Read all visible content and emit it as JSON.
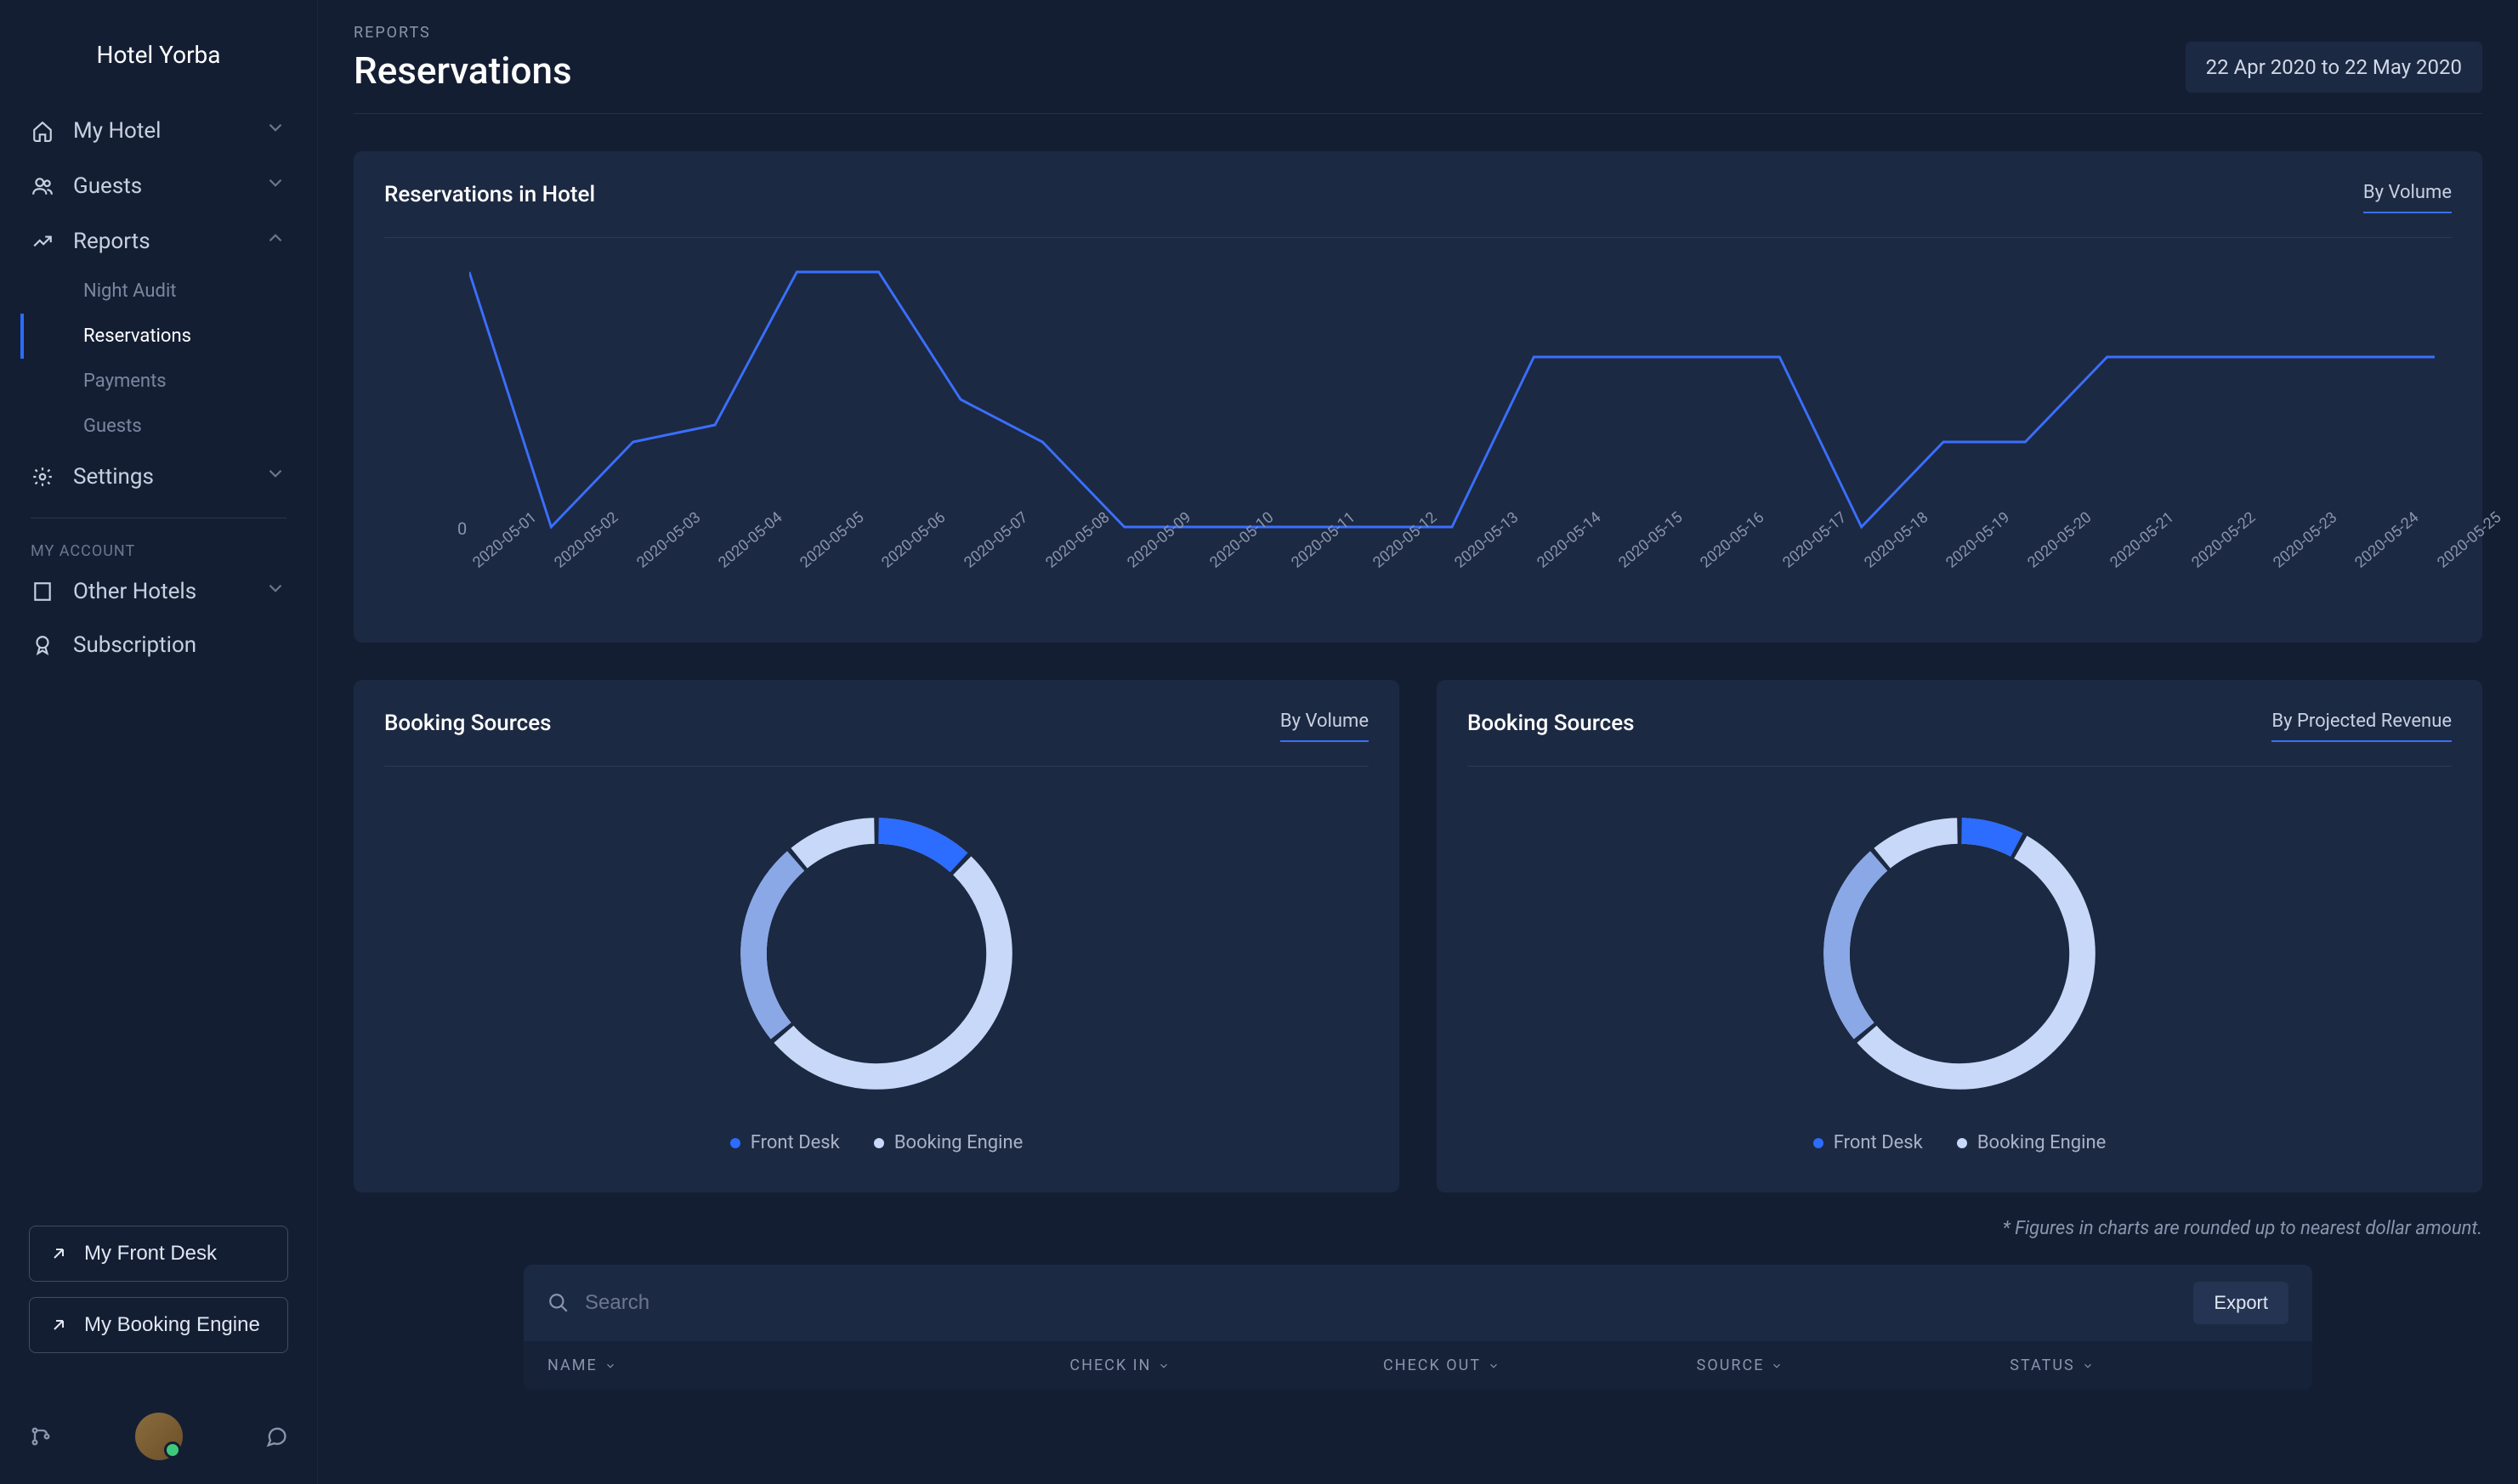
{
  "sidebar": {
    "title": "Hotel Yorba",
    "items": [
      {
        "label": "My Hotel"
      },
      {
        "label": "Guests"
      },
      {
        "label": "Reports"
      },
      {
        "label": "Settings"
      }
    ],
    "reports_sub": [
      {
        "label": "Night Audit"
      },
      {
        "label": "Reservations"
      },
      {
        "label": "Payments"
      },
      {
        "label": "Guests"
      }
    ],
    "account_label": "MY ACCOUNT",
    "account_items": [
      {
        "label": "Other Hotels"
      },
      {
        "label": "Subscription"
      }
    ],
    "buttons": {
      "front_desk": "My Front Desk",
      "booking_engine": "My Booking Engine"
    }
  },
  "header": {
    "breadcrumb": "REPORTS",
    "title": "Reservations",
    "date_range": "22 Apr 2020 to 22 May 2020"
  },
  "chart1": {
    "title": "Reservations in Hotel",
    "filter": "By Volume",
    "type": "line",
    "y_zero_label": "0",
    "line_color": "#3a6fff",
    "line_width": 3,
    "background": "#1c2942",
    "x_labels": [
      "2020-05-01",
      "2020-05-02",
      "2020-05-03",
      "2020-05-04",
      "2020-05-05",
      "2020-05-06",
      "2020-05-07",
      "2020-05-08",
      "2020-05-09",
      "2020-05-10",
      "2020-05-11",
      "2020-05-12",
      "2020-05-13",
      "2020-05-14",
      "2020-05-15",
      "2020-05-16",
      "2020-05-17",
      "2020-05-18",
      "2020-05-19",
      "2020-05-20",
      "2020-05-21",
      "2020-05-22",
      "2020-05-23",
      "2020-05-24",
      "2020-05-25"
    ],
    "values": [
      3,
      0,
      1,
      1.2,
      3,
      3,
      1.5,
      1,
      0,
      0,
      0,
      0,
      0,
      2,
      2,
      2,
      2,
      0,
      1,
      1,
      2,
      2,
      2,
      2,
      2
    ]
  },
  "chart2": {
    "title": "Booking Sources",
    "filter": "By Volume",
    "type": "donut",
    "segments": [
      {
        "label": "Front Desk",
        "value": 12,
        "color": "#2c6cff"
      },
      {
        "label": "Booking Engine",
        "value": 88,
        "color": "#c8d8f8"
      }
    ],
    "segment_dark": "#8aa8e6",
    "gap_color": "#1c2942",
    "thickness": 34
  },
  "chart3": {
    "title": "Booking Sources",
    "filter": "By Projected Revenue",
    "type": "donut",
    "segments": [
      {
        "label": "Front Desk",
        "value": 8,
        "color": "#2c6cff"
      },
      {
        "label": "Booking Engine",
        "value": 92,
        "color": "#c8d8f8"
      }
    ],
    "segment_dark": "#8aa8e6",
    "gap_color": "#1c2942",
    "thickness": 34
  },
  "footnote": "* Figures in charts are rounded up to nearest dollar amount.",
  "table": {
    "search_placeholder": "Search",
    "export_label": "Export",
    "columns": [
      "NAME",
      "CHECK IN",
      "CHECK OUT",
      "SOURCE",
      "STATUS"
    ]
  },
  "style": {
    "label_color": "#8a94ac",
    "label_fontsize": 18
  }
}
